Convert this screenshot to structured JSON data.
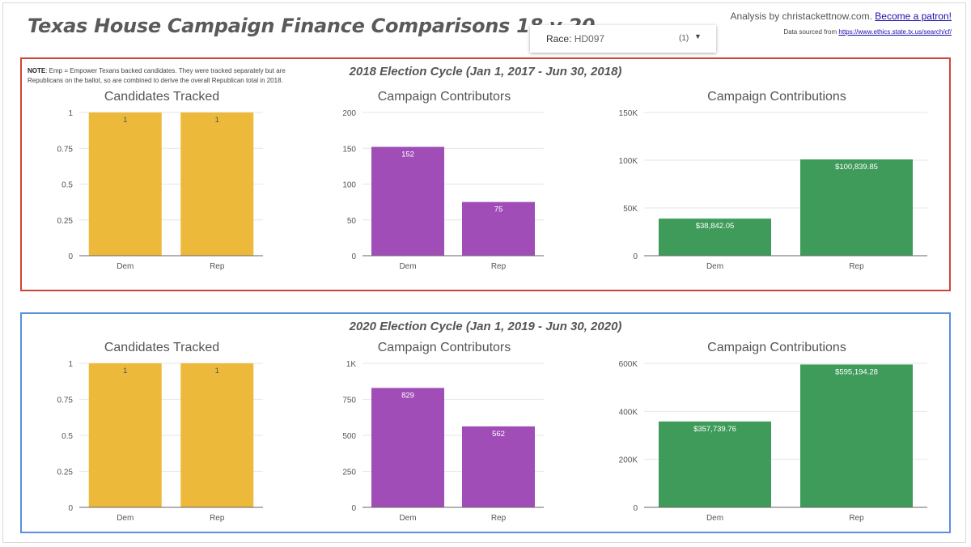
{
  "header": {
    "title": "Texas House Campaign Finance Comparisons 18 v 20",
    "analysis_text": "Analysis by christackettnow.com.",
    "patron_link": "Become a patron!",
    "source_text": "Data sourced from",
    "source_link": "https://www.ethics.state.tx.us/search/cf/"
  },
  "race_filter": {
    "label": "Race:",
    "value": "HD097",
    "count": "(1)"
  },
  "cycle_2018": {
    "title": "2018 Election Cycle (Jan 1, 2017 - Jun 30, 2018)",
    "note_bold": "NOTE",
    "note_text": ": Emp = Empower Texans backed candidates. They were tracked separately but are Republicans on the ballot, so are combined to derive the overall Republican total in 2018."
  },
  "cycle_2020": {
    "title": "2020 Election Cycle (Jan 1, 2019 - Jun 30, 2020)"
  },
  "chart_data": [
    {
      "type": "bar",
      "cycle": "2018",
      "title": "Candidates Tracked",
      "categories": [
        "Dem",
        "Rep"
      ],
      "values": [
        1,
        1
      ],
      "labels": [
        "1",
        "1"
      ],
      "ylim": [
        0,
        1
      ],
      "ticks": [
        0,
        0.25,
        0.5,
        0.75,
        1
      ],
      "tick_labels": [
        "0",
        "0.25",
        "0.5",
        "0.75",
        "1"
      ],
      "color": "#edb93b",
      "label_color": "#555555",
      "grid": true
    },
    {
      "type": "bar",
      "cycle": "2018",
      "title": "Campaign Contributors",
      "categories": [
        "Dem",
        "Rep"
      ],
      "values": [
        152,
        75
      ],
      "labels": [
        "152",
        "75"
      ],
      "ylim": [
        0,
        200
      ],
      "ticks": [
        0,
        50,
        100,
        150,
        200
      ],
      "tick_labels": [
        "0",
        "50",
        "100",
        "150",
        "200"
      ],
      "color": "#a04db8",
      "label_color": "#ffffff",
      "grid": true
    },
    {
      "type": "bar",
      "cycle": "2018",
      "title": "Campaign Contributions",
      "categories": [
        "Dem",
        "Rep"
      ],
      "values": [
        38842.05,
        100839.85
      ],
      "labels": [
        "$38,842.05",
        "$100,839.85"
      ],
      "ylim": [
        0,
        150000
      ],
      "ticks": [
        0,
        50000,
        100000,
        150000
      ],
      "tick_labels": [
        "0",
        "50K",
        "100K",
        "150K"
      ],
      "color": "#3f9b5a",
      "label_color": "#ffffff",
      "grid": true
    },
    {
      "type": "bar",
      "cycle": "2020",
      "title": "Candidates Tracked",
      "categories": [
        "Dem",
        "Rep"
      ],
      "values": [
        1,
        1
      ],
      "labels": [
        "1",
        "1"
      ],
      "ylim": [
        0,
        1
      ],
      "ticks": [
        0,
        0.25,
        0.5,
        0.75,
        1
      ],
      "tick_labels": [
        "0",
        "0.25",
        "0.5",
        "0.75",
        "1"
      ],
      "color": "#edb93b",
      "label_color": "#555555",
      "grid": true
    },
    {
      "type": "bar",
      "cycle": "2020",
      "title": "Campaign Contributors",
      "categories": [
        "Dem",
        "Rep"
      ],
      "values": [
        829,
        562
      ],
      "labels": [
        "829",
        "562"
      ],
      "ylim": [
        0,
        1000
      ],
      "ticks": [
        0,
        250,
        500,
        750,
        1000
      ],
      "tick_labels": [
        "0",
        "250",
        "500",
        "750",
        "1K"
      ],
      "color": "#a04db8",
      "label_color": "#ffffff",
      "grid": true
    },
    {
      "type": "bar",
      "cycle": "2020",
      "title": "Campaign Contributions",
      "categories": [
        "Dem",
        "Rep"
      ],
      "values": [
        357739.76,
        595194.28
      ],
      "labels": [
        "$357,739.76",
        "$595,194.28"
      ],
      "ylim": [
        0,
        600000
      ],
      "ticks": [
        0,
        200000,
        400000,
        600000
      ],
      "tick_labels": [
        "0",
        "200K",
        "400K",
        "600K"
      ],
      "color": "#3f9b5a",
      "label_color": "#ffffff",
      "grid": true
    }
  ]
}
